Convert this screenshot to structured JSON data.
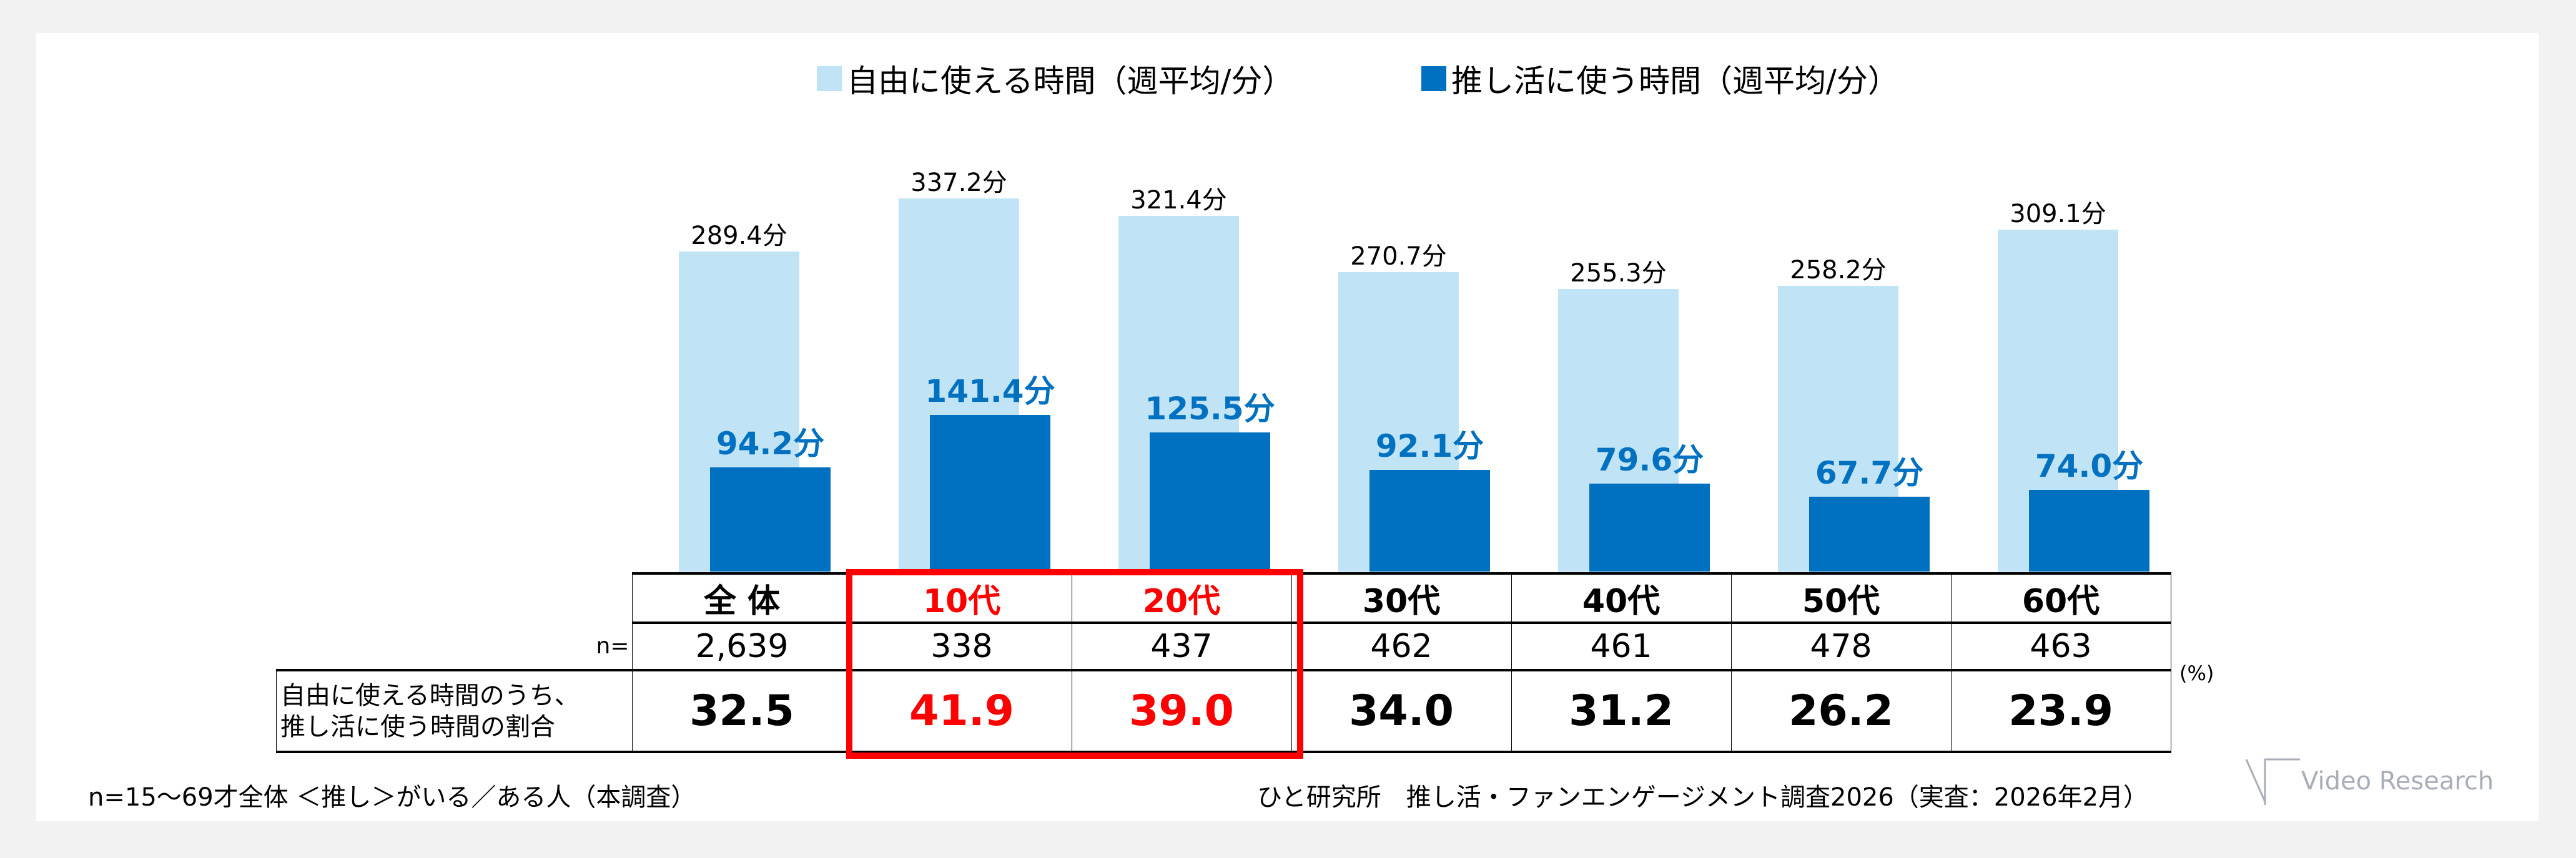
{
  "chart_data": {
    "type": "bar",
    "categories": [
      "全 体",
      "10代",
      "20代",
      "30代",
      "40代",
      "50代",
      "60代"
    ],
    "series": [
      {
        "name": "自由に使える時間（週平均/分）",
        "values": [
          289.4,
          337.2,
          321.4,
          270.7,
          255.3,
          258.2,
          309.1
        ],
        "labels": [
          "289.4分",
          "337.2分",
          "321.4分",
          "270.7分",
          "255.3分",
          "258.2分",
          "309.1分"
        ],
        "color": "#c0e4f5"
      },
      {
        "name": "推し活に使う時間（週平均/分）",
        "values": [
          94.2,
          141.4,
          125.5,
          92.1,
          79.6,
          67.7,
          74.0
        ],
        "labels": [
          "94.2分",
          "141.4分",
          "125.5分",
          "92.1分",
          "79.6分",
          "67.7分",
          "74.0分"
        ],
        "color": "#0070c0"
      }
    ],
    "ylim": [
      0,
      350
    ],
    "highlight_categories": [
      "10代",
      "20代"
    ],
    "highlight_color": "#ff0000"
  },
  "table": {
    "n_label": "n=",
    "n_values": [
      "2,639",
      "338",
      "437",
      "462",
      "461",
      "478",
      "463"
    ],
    "ratio_label_line1": "自由に使える時間のうち、",
    "ratio_label_line2": "推し活に使う時間の割合",
    "ratio_values": [
      "32.5",
      "41.9",
      "39.0",
      "34.0",
      "31.2",
      "26.2",
      "23.9"
    ],
    "unit": "(%)"
  },
  "footer": {
    "note": "n=15～69才全体 ＜推し＞がいる／ある人（本調査）",
    "source": "ひと研究所　推し活・ファンエンゲージメント調査2026（実査：2026年2月）",
    "logo": "Video Research"
  }
}
